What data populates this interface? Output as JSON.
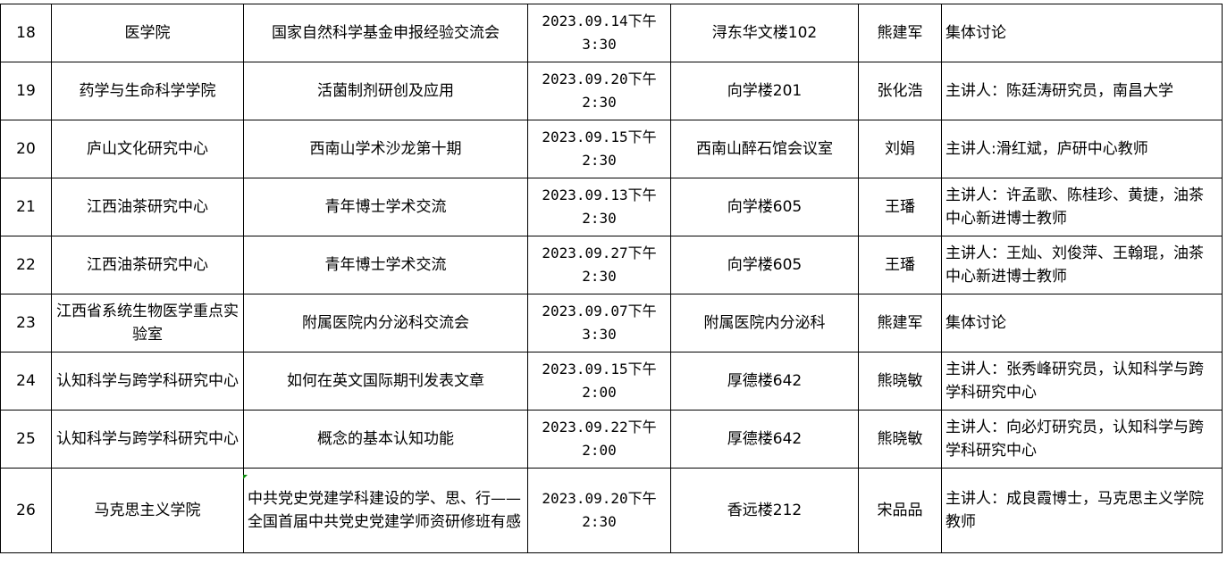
{
  "rows": [
    {
      "no": "18",
      "unit": "医学院",
      "title": "国家自然科学基金申报经验交流会",
      "time": "2023.09.14下午3:30",
      "place": "浔东华文楼102",
      "contact": "熊建军",
      "note": "集体讨论"
    },
    {
      "no": "19",
      "unit": "药学与生命科学学院",
      "title": "活菌制剂研创及应用",
      "time": "2023.09.20下午2:30",
      "place": "向学楼201",
      "contact": "张化浩",
      "note": "主讲人：陈廷涛研究员，南昌大学"
    },
    {
      "no": "20",
      "unit": "庐山文化研究中心",
      "title": "西南山学术沙龙第十期",
      "time": "2023.09.15下午2:30",
      "place": "西南山醉石馆会议室",
      "contact": "刘娟",
      "note": "主讲人:滑红斌，庐研中心教师"
    },
    {
      "no": "21",
      "unit": "江西油茶研究中心",
      "title": "青年博士学术交流",
      "time": "2023.09.13下午2:30",
      "place": "向学楼605",
      "contact": "王璠",
      "note": "主讲人：许孟歌、陈桂珍、黄捷，油茶中心新进博士教师"
    },
    {
      "no": "22",
      "unit": "江西油茶研究中心",
      "title": "青年博士学术交流",
      "time": "2023.09.27下午2:30",
      "place": "向学楼605",
      "contact": "王璠",
      "note": "主讲人：王灿、刘俊萍、王翰琨，油茶中心新进博士教师"
    },
    {
      "no": "23",
      "unit": "江西省系统生物医学重点实验室",
      "title": "附属医院内分泌科交流会",
      "time": "2023.09.07下午3:30",
      "place": "附属医院内分泌科",
      "contact": "熊建军",
      "note": "集体讨论"
    },
    {
      "no": "24",
      "unit": "认知科学与跨学科研究中心",
      "title": "如何在英文国际期刊发表文章",
      "time": "2023.09.15下午2:00",
      "place": "厚德楼642",
      "contact": "熊晓敏",
      "note": "主讲人：张秀峰研究员，认知科学与跨学科研究中心"
    },
    {
      "no": "25",
      "unit": "认知科学与跨学科研究中心",
      "title": "概念的基本认知功能",
      "time": "2023.09.22下午2:00",
      "place": "厚德楼642",
      "contact": "熊晓敏",
      "note": "主讲人：向必灯研究员，认知科学与跨学科研究中心"
    },
    {
      "no": "26",
      "unit": "马克思主义学院",
      "title": "中共党史党建学科建设的学、思、行——全国首届中共党史党建学师资研修班有感",
      "time": "2023.09.20下午2:30",
      "place": "香远楼212",
      "contact": "宋品品",
      "note": "主讲人：成良霞博士，马克思主义学院教师"
    }
  ]
}
